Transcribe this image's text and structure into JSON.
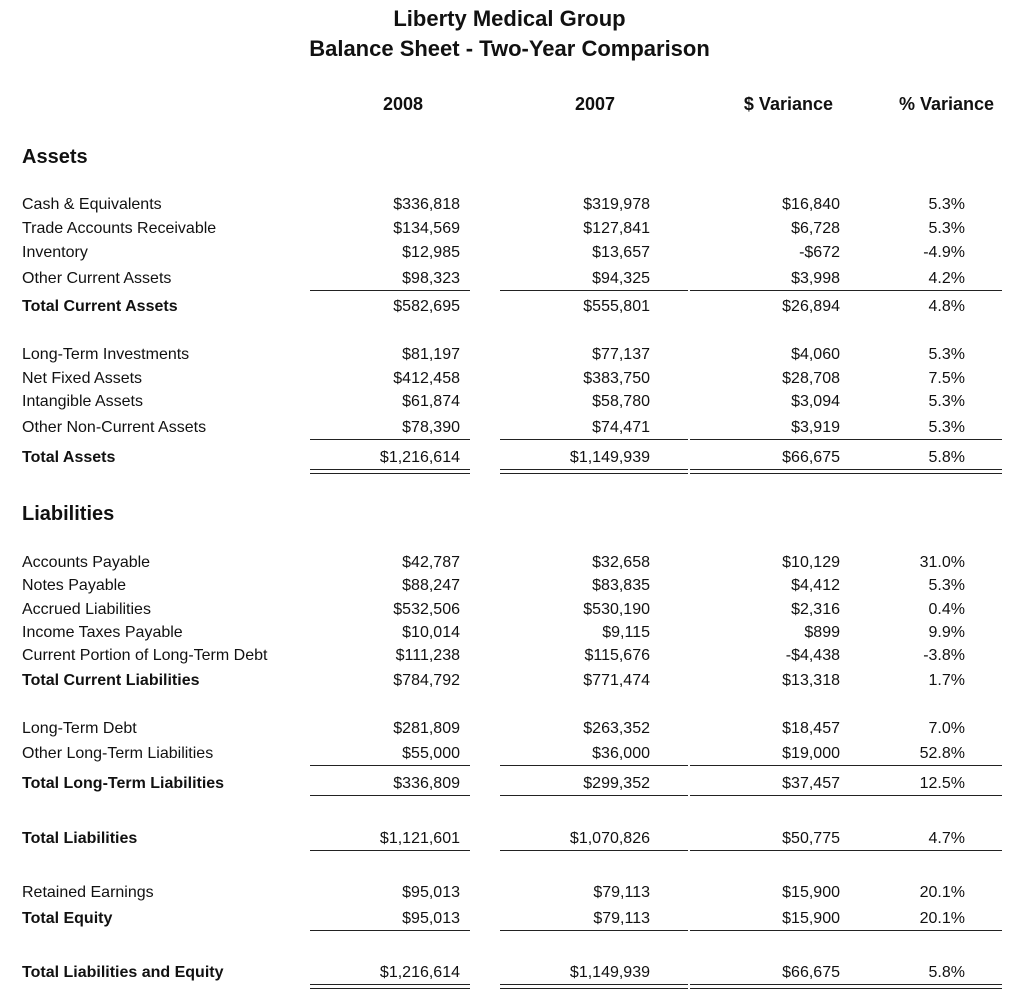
{
  "header": {
    "title": "Liberty Medical Group",
    "subtitle": "Balance Sheet - Two-Year Comparison"
  },
  "columns": [
    "2008",
    "2007",
    "$ Variance",
    "% Variance"
  ],
  "sections": {
    "assets": "Assets",
    "liabilities": "Liabilities"
  },
  "rows": [
    {
      "label": "Cash & Equivalents",
      "values": [
        "$336,818",
        "$319,978",
        "$16,840",
        "5.3%"
      ]
    },
    {
      "label": "Trade Accounts Receivable",
      "values": [
        "$134,569",
        "$127,841",
        "$6,728",
        "5.3%"
      ]
    },
    {
      "label": "Inventory",
      "values": [
        "$12,985",
        "$13,657",
        "-$672",
        "-4.9%"
      ]
    },
    {
      "label": "Other Current Assets",
      "values": [
        "$98,323",
        "$94,325",
        "$3,998",
        "4.2%"
      ]
    },
    {
      "label": "Total Current Assets",
      "values": [
        "$582,695",
        "$555,801",
        "$26,894",
        "4.8%"
      ]
    },
    {
      "label": "Long-Term Investments",
      "values": [
        "$81,197",
        "$77,137",
        "$4,060",
        "5.3%"
      ]
    },
    {
      "label": "Net Fixed Assets",
      "values": [
        "$412,458",
        "$383,750",
        "$28,708",
        "7.5%"
      ]
    },
    {
      "label": "Intangible Assets",
      "values": [
        "$61,874",
        "$58,780",
        "$3,094",
        "5.3%"
      ]
    },
    {
      "label": "Other Non-Current Assets",
      "values": [
        "$78,390",
        "$74,471",
        "$3,919",
        "5.3%"
      ]
    },
    {
      "label": "Total Assets",
      "values": [
        "$1,216,614",
        "$1,149,939",
        "$66,675",
        "5.8%"
      ]
    },
    {
      "label": "Accounts Payable",
      "values": [
        "$42,787",
        "$32,658",
        "$10,129",
        "31.0%"
      ]
    },
    {
      "label": "Notes Payable",
      "values": [
        "$88,247",
        "$83,835",
        "$4,412",
        "5.3%"
      ]
    },
    {
      "label": "Accrued Liabilities",
      "values": [
        "$532,506",
        "$530,190",
        "$2,316",
        "0.4%"
      ]
    },
    {
      "label": "Income Taxes Payable",
      "values": [
        "$10,014",
        "$9,115",
        "$899",
        "9.9%"
      ]
    },
    {
      "label": "Current Portion of Long-Term Debt",
      "values": [
        "$111,238",
        "$115,676",
        "-$4,438",
        "-3.8%"
      ]
    },
    {
      "label": "Total Current Liabilities",
      "values": [
        "$784,792",
        "$771,474",
        "$13,318",
        "1.7%"
      ]
    },
    {
      "label": "Long-Term Debt",
      "values": [
        "$281,809",
        "$263,352",
        "$18,457",
        "7.0%"
      ]
    },
    {
      "label": "Other Long-Term Liabilities",
      "values": [
        "$55,000",
        "$36,000",
        "$19,000",
        "52.8%"
      ]
    },
    {
      "label": "Total Long-Term Liabilities",
      "values": [
        "$336,809",
        "$299,352",
        "$37,457",
        "12.5%"
      ]
    },
    {
      "label": "Total Liabilities",
      "values": [
        "$1,121,601",
        "$1,070,826",
        "$50,775",
        "4.7%"
      ]
    },
    {
      "label": "Retained Earnings",
      "values": [
        "$95,013",
        "$79,113",
        "$15,900",
        "20.1%"
      ]
    },
    {
      "label": "Total Equity",
      "values": [
        "$95,013",
        "$79,113",
        "$15,900",
        "20.1%"
      ]
    },
    {
      "label": "Total Liabilities and Equity",
      "values": [
        "$1,216,614",
        "$1,149,939",
        "$66,675",
        "5.8%"
      ]
    }
  ]
}
